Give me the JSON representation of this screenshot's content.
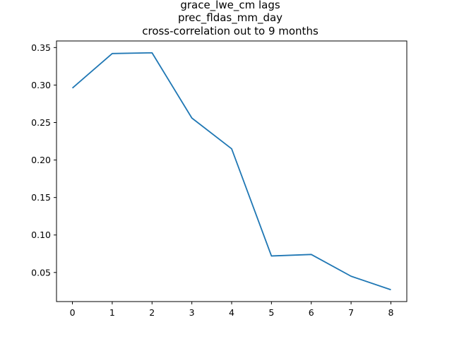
{
  "chart_data": {
    "type": "line",
    "title_lines": [
      "grace_lwe_cm lags",
      "prec_fldas_mm_day",
      "cross-correlation out to 9 months"
    ],
    "xlabel": "",
    "ylabel": "",
    "x": [
      0,
      1,
      2,
      3,
      4,
      5,
      6,
      7,
      8
    ],
    "series": [
      {
        "values": [
          0.296,
          0.342,
          0.343,
          0.256,
          0.215,
          0.072,
          0.074,
          0.045,
          0.027
        ],
        "color": "#1f77b4"
      }
    ],
    "xlim": [
      -0.4,
      8.4
    ],
    "ylim": [
      0.0112,
      0.3588
    ],
    "xticks": [
      0,
      1,
      2,
      3,
      4,
      5,
      6,
      7,
      8
    ],
    "yticks": [
      0.05,
      0.1,
      0.15,
      0.2,
      0.25,
      0.3,
      0.35
    ],
    "ytick_labels": [
      "0.05",
      "0.10",
      "0.15",
      "0.20",
      "0.25",
      "0.30",
      "0.35"
    ],
    "grid": false,
    "legend": "none"
  }
}
